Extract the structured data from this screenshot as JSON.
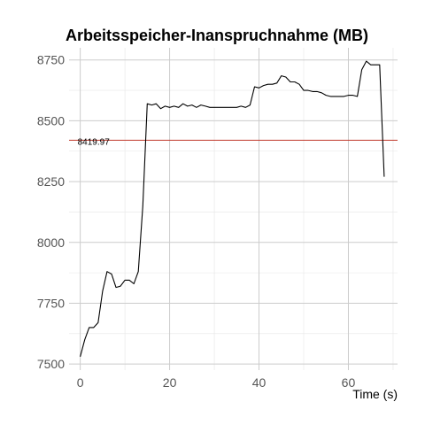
{
  "chart_data": {
    "type": "line",
    "title": "Arbeitsspeicher-Inanspruchnahme (MB)",
    "xlabel": "Time (s)",
    "ylabel": "",
    "xlim": [
      -2.5,
      71
    ],
    "ylim": [
      7475,
      8800
    ],
    "x_ticks": [
      0,
      20,
      40,
      60
    ],
    "x_tick_labels": [
      "0",
      "20",
      "40",
      "60"
    ],
    "x_minor_ticks": [
      10,
      30,
      50,
      70
    ],
    "y_ticks": [
      7500,
      7750,
      8000,
      8250,
      8500,
      8750
    ],
    "y_tick_labels": [
      "7500",
      "7750",
      "8000",
      "8250",
      "8500",
      "8750"
    ],
    "y_minor_ticks": [
      7625,
      7875,
      8125,
      8375,
      8625
    ],
    "grid": true,
    "series": [
      {
        "color": "#000000",
        "x": [
          0,
          1,
          2,
          3,
          4,
          5,
          6,
          7,
          8,
          9,
          10,
          11,
          12,
          13,
          14,
          15,
          16,
          17,
          18,
          19,
          20,
          21,
          22,
          23,
          24,
          25,
          26,
          27,
          28,
          29,
          30,
          31,
          32,
          33,
          34,
          35,
          36,
          37,
          38,
          39,
          40,
          41,
          42,
          43,
          44,
          45,
          46,
          47,
          48,
          49,
          50,
          51,
          52,
          53,
          54,
          55,
          56,
          57,
          58,
          59,
          60,
          61,
          62,
          63,
          64,
          65,
          66,
          67,
          68
        ],
        "y": [
          7530,
          7600,
          7650,
          7650,
          7670,
          7800,
          7880,
          7870,
          7815,
          7820,
          7845,
          7845,
          7830,
          7880,
          8150,
          8570,
          8565,
          8570,
          8550,
          8560,
          8555,
          8560,
          8555,
          8570,
          8560,
          8565,
          8555,
          8565,
          8560,
          8555,
          8555,
          8555,
          8555,
          8555,
          8555,
          8555,
          8560,
          8555,
          8565,
          8640,
          8635,
          8645,
          8650,
          8650,
          8655,
          8685,
          8680,
          8660,
          8660,
          8650,
          8625,
          8625,
          8620,
          8620,
          8615,
          8605,
          8600,
          8600,
          8600,
          8600,
          8605,
          8605,
          8600,
          8710,
          8745,
          8730,
          8730,
          8730,
          8270
        ]
      }
    ],
    "reference_line": {
      "y": 8419.97,
      "label": "8419.97",
      "color": "#c0392b"
    }
  }
}
